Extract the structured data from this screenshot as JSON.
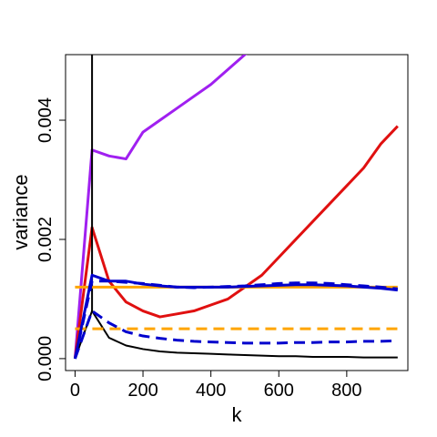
{
  "chart_data": {
    "type": "line",
    "title": "",
    "xlabel": "k",
    "ylabel": "variance",
    "xlim": [
      -28,
      980
    ],
    "ylim": [
      -0.0002,
      0.0051
    ],
    "xticks": [
      0,
      200,
      400,
      600,
      800
    ],
    "xtick_labels": [
      "0",
      "200",
      "400",
      "600",
      "800"
    ],
    "yticks": [
      0.0,
      0.002,
      0.004
    ],
    "ytick_labels": [
      "0.000",
      "0.002",
      "0.004"
    ],
    "grid": false,
    "legend": "none",
    "series": [
      {
        "color": "#a020f0",
        "dash": "solid",
        "x": [
          0,
          50,
          100,
          150,
          200,
          250,
          300,
          350,
          400,
          450,
          500,
          550
        ],
        "y": [
          0.0,
          0.0035,
          0.0034,
          0.00335,
          0.0038,
          0.004,
          0.0042,
          0.0044,
          0.0046,
          0.00485,
          0.0051,
          0.0053
        ]
      },
      {
        "color": "#e01010",
        "dash": "solid",
        "x": [
          0,
          50,
          100,
          150,
          200,
          250,
          300,
          350,
          400,
          450,
          500,
          550,
          600,
          650,
          700,
          750,
          800,
          850,
          900,
          950
        ],
        "y": [
          0.0,
          0.0022,
          0.0013,
          0.00095,
          0.0008,
          0.0007,
          0.00075,
          0.0008,
          0.0009,
          0.001,
          0.0012,
          0.0014,
          0.0017,
          0.002,
          0.0023,
          0.0026,
          0.0029,
          0.0032,
          0.0036,
          0.0039
        ]
      },
      {
        "color": "#000000",
        "dash": "solid",
        "x": [
          0,
          50,
          100,
          150,
          200,
          250,
          300,
          350,
          400,
          450,
          500,
          550,
          600,
          650,
          700,
          750,
          800,
          850,
          900,
          950
        ],
        "y": [
          0.0,
          0.0008,
          0.00035,
          0.00022,
          0.00016,
          0.00012,
          0.0001,
          9e-05,
          8e-05,
          7e-05,
          6e-05,
          5e-05,
          4e-05,
          4e-05,
          3e-05,
          3e-05,
          3e-05,
          2e-05,
          2e-05,
          2e-05
        ]
      },
      {
        "color": "#000000",
        "dash": "solid",
        "x": [
          50,
          50
        ],
        "y": [
          0.0008,
          0.0062
        ]
      },
      {
        "color": "#ffa500",
        "dash": "solid",
        "x": [
          0,
          950
        ],
        "y": [
          0.0012,
          0.0012
        ]
      },
      {
        "color": "#ffa500",
        "dash": "dashed",
        "x": [
          0,
          950
        ],
        "y": [
          0.0005,
          0.0005
        ]
      },
      {
        "color": "#0000cd",
        "dash": "solid",
        "x": [
          0,
          50,
          100,
          150,
          200,
          250,
          300,
          350,
          400,
          450,
          500,
          550,
          600,
          650,
          700,
          750,
          800,
          850,
          900,
          950
        ],
        "y": [
          0.0,
          0.0014,
          0.0013,
          0.0013,
          0.00125,
          0.00122,
          0.0012,
          0.0012,
          0.0012,
          0.0012,
          0.00121,
          0.00122,
          0.00123,
          0.00124,
          0.00124,
          0.00123,
          0.00122,
          0.0012,
          0.00118,
          0.00115
        ]
      },
      {
        "color": "#0000cd",
        "dash": "dashed",
        "x": [
          0,
          50,
          100,
          150,
          200,
          250,
          300,
          350,
          400,
          450,
          500,
          550,
          600,
          650,
          700,
          750,
          800,
          850,
          900,
          950
        ],
        "y": [
          0.0,
          0.0013,
          0.0013,
          0.00128,
          0.00126,
          0.00123,
          0.0012,
          0.00119,
          0.0012,
          0.00121,
          0.00122,
          0.00124,
          0.00126,
          0.00127,
          0.00127,
          0.00126,
          0.00124,
          0.00122,
          0.0012,
          0.00117
        ]
      },
      {
        "color": "#0000cd",
        "dash": "dashed",
        "x": [
          0,
          50,
          100,
          150,
          200,
          250,
          300,
          350,
          400,
          450,
          500,
          550,
          600,
          650,
          700,
          750,
          800,
          850,
          900,
          950
        ],
        "y": [
          0.0,
          0.0008,
          0.0006,
          0.00045,
          0.00038,
          0.00034,
          0.00031,
          0.00029,
          0.00028,
          0.00027,
          0.00026,
          0.00026,
          0.00026,
          0.00027,
          0.00027,
          0.00028,
          0.00028,
          0.00029,
          0.00029,
          0.0003
        ]
      }
    ]
  }
}
